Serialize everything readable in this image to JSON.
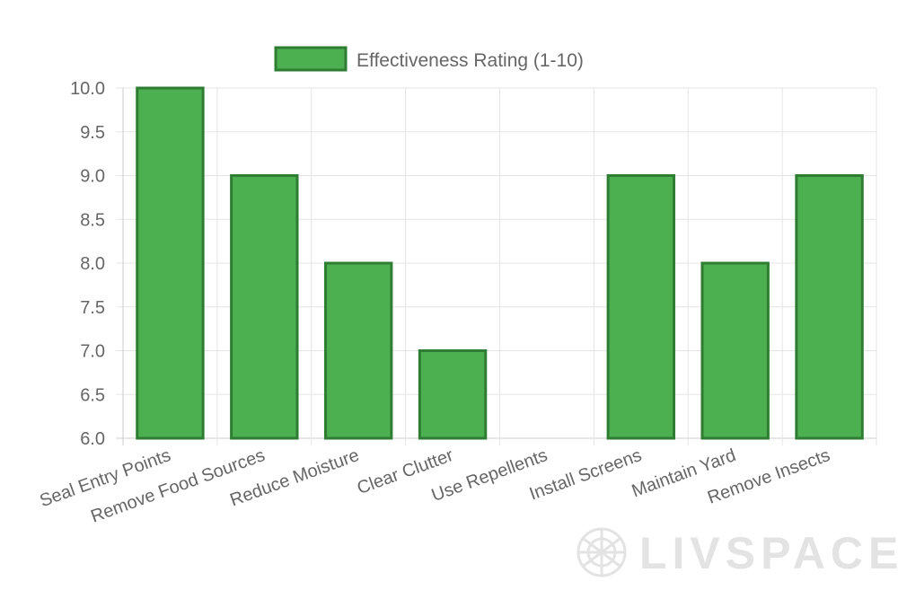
{
  "chart_data": {
    "type": "bar",
    "categories": [
      "Seal Entry Points",
      "Remove Food Sources",
      "Reduce Moisture",
      "Clear Clutter",
      "Use Repellents",
      "Install Screens",
      "Maintain Yard",
      "Remove Insects"
    ],
    "series": [
      {
        "name": "Effectiveness Rating (1-10)",
        "values": [
          10,
          9,
          8,
          7,
          6,
          9,
          8,
          9
        ]
      }
    ],
    "ylim": [
      6.0,
      10.0
    ],
    "yticks": [
      "6.0",
      "6.5",
      "7.0",
      "7.5",
      "8.0",
      "8.5",
      "9.0",
      "9.5",
      "10.0"
    ],
    "legend_position": "top-center",
    "grid": true,
    "colors": {
      "bar_fill": "#4caf50",
      "bar_border": "#2e7d32",
      "grid": "#e5e5e5",
      "axis": "#cccccc",
      "text": "#666666"
    }
  },
  "watermark": {
    "text": "LIVSPACE"
  }
}
